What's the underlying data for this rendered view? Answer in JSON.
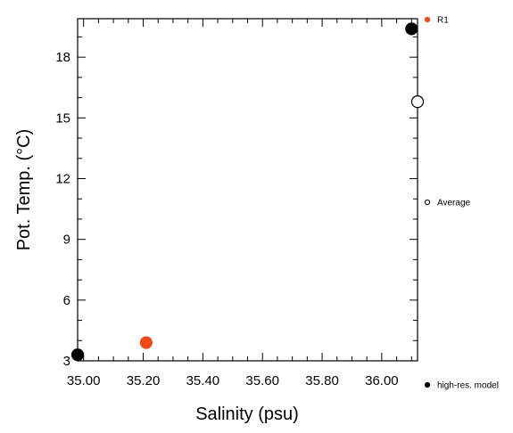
{
  "chart_data": {
    "type": "scatter",
    "xlabel": "Salinity (psu)",
    "ylabel": "Pot. Temp. (°C)",
    "xlim": [
      34.98,
      36.12
    ],
    "ylim": [
      3.0,
      19.9
    ],
    "x_ticks": [
      "35.00",
      "35.20",
      "35.40",
      "35.60",
      "35.80",
      "36.00"
    ],
    "x_tick_values": [
      35.0,
      35.2,
      35.4,
      35.6,
      35.8,
      36.0
    ],
    "y_ticks": [
      "3",
      "6",
      "9",
      "12",
      "15",
      "18"
    ],
    "y_tick_values": [
      3,
      6,
      9,
      12,
      15,
      18
    ],
    "grid": false,
    "series": [
      {
        "name": "R1",
        "color": "#f04a1a",
        "marker": "filled-circle",
        "points": [
          {
            "x": 35.21,
            "y": 3.9
          },
          {
            "x": 36.12,
            "y": 15.8
          }
        ]
      },
      {
        "name": "Average",
        "color": "#000000",
        "marker": "open-circle",
        "points": [
          {
            "x": 36.13,
            "y": 15.8
          }
        ]
      },
      {
        "name": "high-res. model",
        "color": "#000000",
        "marker": "filled-circle",
        "points": [
          {
            "x": 34.98,
            "y": 3.3
          },
          {
            "x": 36.1,
            "y": 19.4
          }
        ]
      }
    ],
    "legend_placement": "right"
  }
}
